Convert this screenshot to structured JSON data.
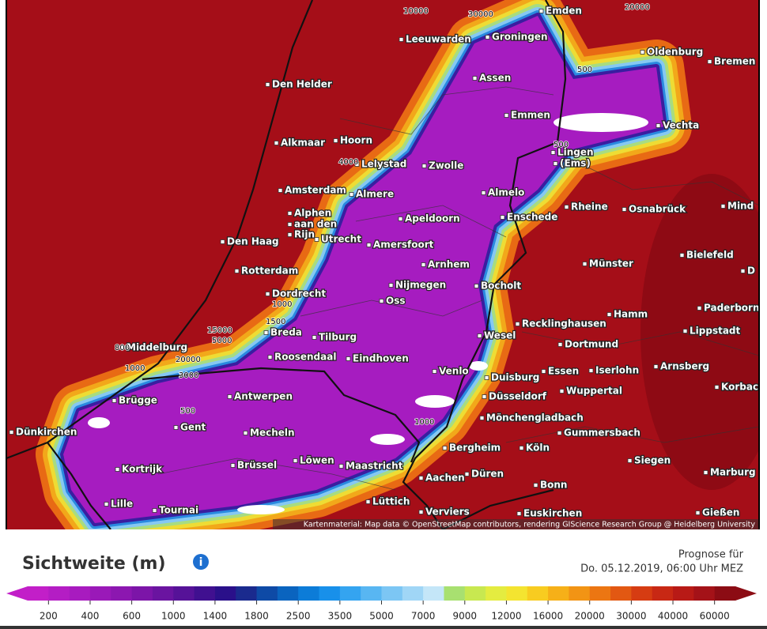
{
  "map": {
    "attribution": "Kartenmaterial: Map data © OpenStreetMap contributors, rendering GIScience Research Group @ Heidelberg University",
    "cities": [
      "Emden",
      "Groningen",
      "Leeuwarden",
      "Oldenburg",
      "Bremen",
      "Den Helder",
      "Assen",
      "Emmen",
      "Vechta",
      "Alkmaar",
      "Hoorn",
      "Lelystad",
      "Zwolle",
      "Lingen",
      "(Ems)",
      "Amsterdam",
      "Almere",
      "Almelo",
      "Alphen",
      "aan den",
      "Rijn",
      "Rheine",
      "Osnabrück",
      "Mind",
      "Apeldoorn",
      "Enschede",
      "Den Haag",
      "Utrecht",
      "Amersfoort",
      "Bielefeld",
      "Münster",
      "Arnhem",
      "Rotterdam",
      "D",
      "Nijmegen",
      "Bocholt",
      "Dordrecht",
      "Oss",
      "Paderborn",
      "Hamm",
      "Recklinghausen",
      "Lippstadt",
      "Middelburg",
      "Breda",
      "Tilburg",
      "Wesel",
      "Dortmund",
      "Roosendaal",
      "Eindhoven",
      "Arnsberg",
      "Venlo",
      "Duisburg",
      "Essen",
      "Iserlohn",
      "Korbac",
      "Brügge",
      "Antwerpen",
      "Düsseldorf",
      "Wuppertal",
      "Mönchengladbach",
      "Gent",
      "Dünkirchen",
      "Mecheln",
      "Gummersbach",
      "Bergheim",
      "Köln",
      "Kortrijk",
      "Brüssel",
      "Löwen",
      "Maastricht",
      "Siegen",
      "Marburg",
      "Aachen",
      "Düren",
      "Bonn",
      "Lille",
      "Tournai",
      "Lüttich",
      "Verviers",
      "Euskirchen",
      "Gießen"
    ],
    "contour_labels": [
      "30000",
      "20000",
      "10000",
      "500",
      "500",
      "4000",
      "1000",
      "1500",
      "15000",
      "5000",
      "800",
      "20000",
      "3000",
      "1000",
      "500",
      "1000"
    ]
  },
  "legend": {
    "title": "Sichtweite (m)",
    "forecast_label": "Prognose für",
    "forecast_time": "Do. 05.12.2019, 06:00 Uhr MEZ",
    "ticks": [
      "200",
      "400",
      "600",
      "1000",
      "1400",
      "1800",
      "2500",
      "3500",
      "5000",
      "7000",
      "9000",
      "12000",
      "16000",
      "20000",
      "30000",
      "40000",
      "60000"
    ],
    "colors": [
      "#c21fc8",
      "#b41dc4",
      "#a81bbf",
      "#9a19b8",
      "#8c17b0",
      "#7c15a8",
      "#6a14a0",
      "#561298",
      "#401090",
      "#2a108a",
      "#1a2a8e",
      "#0e4aa6",
      "#0a64bf",
      "#0c7cd8",
      "#1890ea",
      "#34a4f0",
      "#58b6f2",
      "#7cc6f4",
      "#a0d6f6",
      "#c4e6f8",
      "#a8e070",
      "#c8e850",
      "#e4ec40",
      "#f4e430",
      "#f8cc20",
      "#f6b018",
      "#f29414",
      "#ec7612",
      "#e25812",
      "#d63c12",
      "#c82814",
      "#b81a16",
      "#a41218",
      "#8c0c14"
    ]
  }
}
